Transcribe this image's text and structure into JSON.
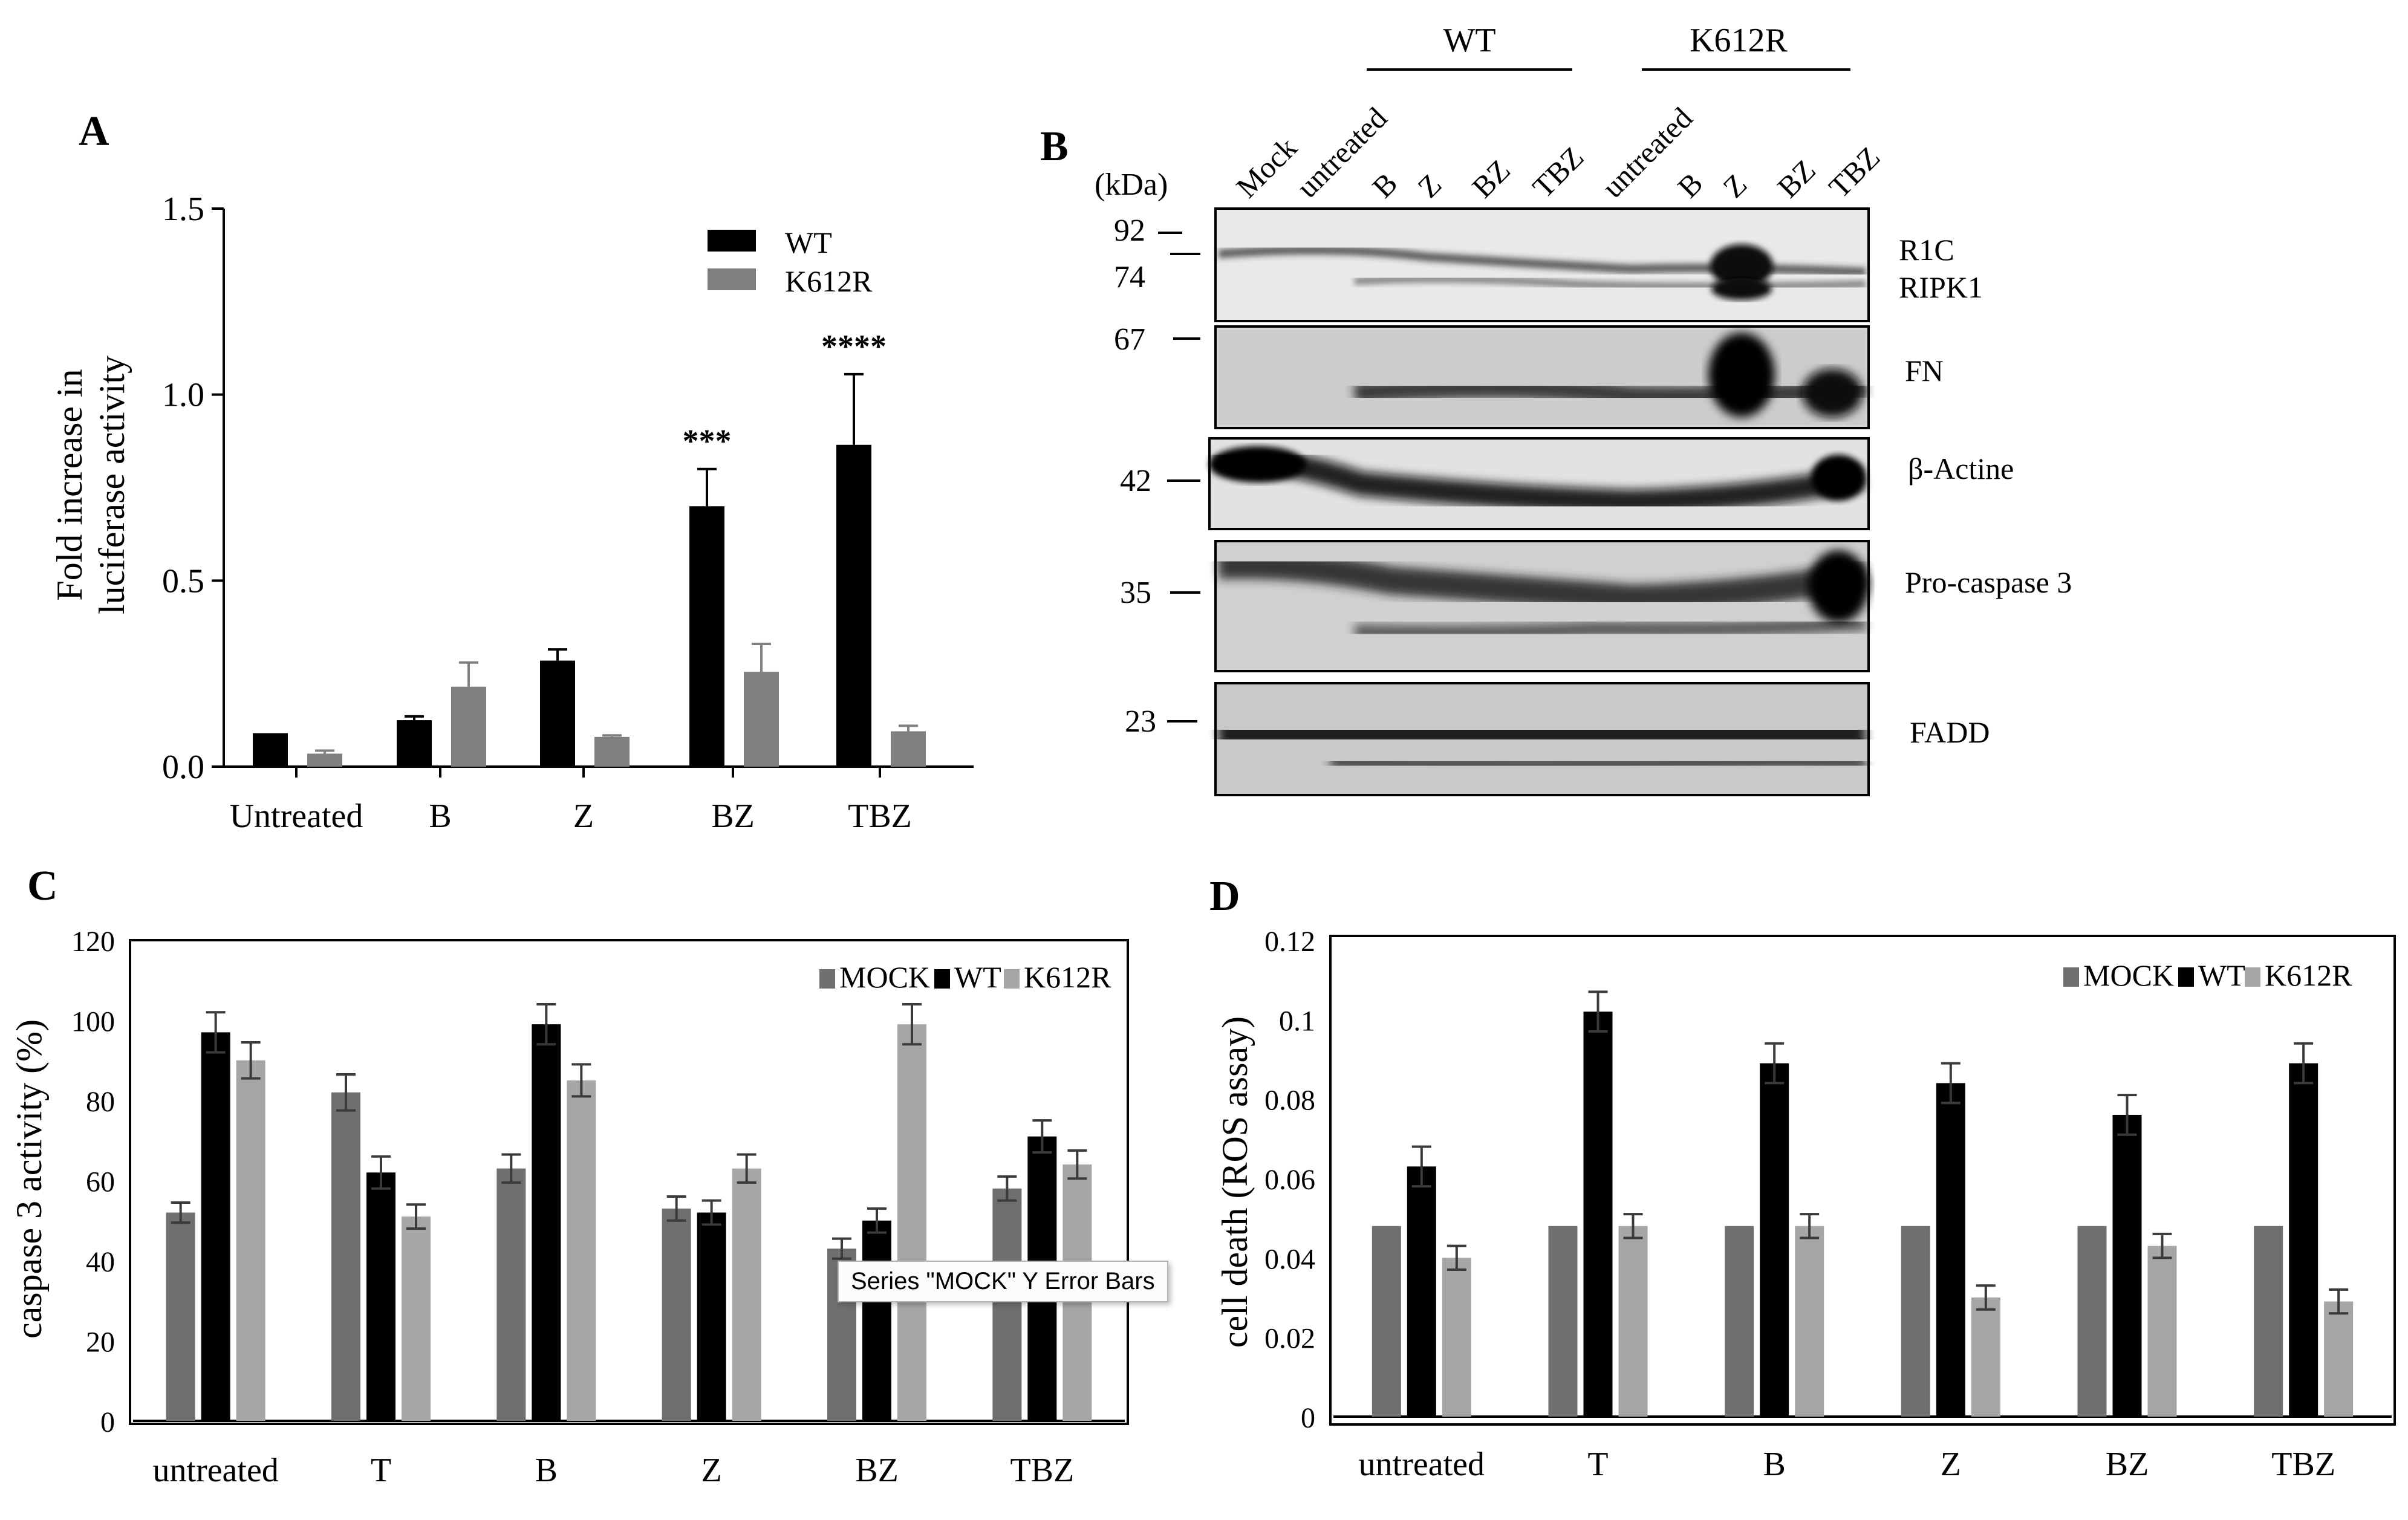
{
  "colors": {
    "wt": "#000000",
    "k612r_a": "#808080",
    "mock": "#6f6f6f",
    "k612r_light": "#a6a6a6",
    "frame": "#000000"
  },
  "chart_data": [
    {
      "panel": "A",
      "type": "bar",
      "ylabel_line1": "Fold increase in",
      "ylabel_line2": "luciferase activity",
      "ylim": [
        0,
        1.5
      ],
      "yticks": [
        "0.0",
        "0.5",
        "1.0",
        "1.5"
      ],
      "categories": [
        "Untreated",
        "B",
        "Z",
        "BZ",
        "TBZ"
      ],
      "series": [
        {
          "name": "WT",
          "values": [
            0.09,
            0.125,
            0.285,
            0.7,
            0.865
          ],
          "errors": [
            0.0,
            0.01,
            0.03,
            0.1,
            0.19
          ]
        },
        {
          "name": "K612R",
          "values": [
            0.035,
            0.215,
            0.08,
            0.255,
            0.095
          ],
          "errors": [
            0.008,
            0.065,
            0.004,
            0.075,
            0.015
          ]
        }
      ],
      "annotations": [
        {
          "category": "BZ",
          "text": "***"
        },
        {
          "category": "TBZ",
          "text": "****"
        }
      ]
    },
    {
      "panel": "C",
      "type": "bar",
      "ylabel": "caspase 3 activity (%)",
      "ylim": [
        0,
        120
      ],
      "yticks": [
        "0",
        "20",
        "40",
        "60",
        "80",
        "100",
        "120"
      ],
      "categories": [
        "untreated",
        "T",
        "B",
        "Z",
        "BZ",
        "TBZ"
      ],
      "series": [
        {
          "name": "MOCK",
          "values": [
            52,
            82,
            63,
            53,
            43,
            58
          ],
          "errors": [
            2.5,
            4.5,
            3.5,
            3,
            2.5,
            3
          ]
        },
        {
          "name": "WT",
          "values": [
            97,
            62,
            99,
            52,
            50,
            71
          ],
          "errors": [
            5,
            4,
            5,
            3,
            3,
            4
          ]
        },
        {
          "name": "K612R",
          "values": [
            90,
            51,
            85,
            63,
            99,
            64
          ],
          "errors": [
            4.5,
            3,
            4,
            3.5,
            5,
            3.5
          ]
        }
      ],
      "tooltip": "Series \"MOCK\" Y Error Bars"
    },
    {
      "panel": "D",
      "type": "bar",
      "ylabel": "cell death (ROS assay)",
      "ylim": [
        0,
        0.12
      ],
      "yticks": [
        "0",
        "0.02",
        "0.04",
        "0.06",
        "0.08",
        "0.1",
        "0.12"
      ],
      "categories": [
        "untreated",
        "T",
        "B",
        "Z",
        "BZ",
        "TBZ"
      ],
      "series": [
        {
          "name": "MOCK",
          "values": [
            0.048,
            0.048,
            0.048,
            0.048,
            0.048,
            0.048
          ],
          "errors": [
            0,
            0,
            0,
            0,
            0,
            0
          ]
        },
        {
          "name": "WT",
          "values": [
            0.063,
            0.102,
            0.089,
            0.084,
            0.076,
            0.089
          ],
          "errors": [
            0.005,
            0.005,
            0.005,
            0.005,
            0.005,
            0.005
          ]
        },
        {
          "name": "K612R",
          "values": [
            0.04,
            0.048,
            0.048,
            0.03,
            0.043,
            0.029
          ],
          "errors": [
            0.003,
            0.003,
            0.003,
            0.003,
            0.003,
            0.003
          ]
        }
      ]
    }
  ],
  "blot": {
    "panel": "B",
    "group_labels": [
      "WT",
      "K612R"
    ],
    "kda_title": "(kDa)",
    "lane_labels": [
      "Mock",
      "untreated",
      "B",
      "Z",
      "BZ",
      "TBZ",
      "untreated",
      "B",
      "Z",
      "BZ",
      "TBZ"
    ],
    "markers": [
      "92",
      "74",
      "67",
      "42",
      "35",
      "23"
    ],
    "band_labels": [
      "R1C",
      "RIPK1",
      "FN",
      "β-Actine",
      "Pro-caspase 3",
      "FADD"
    ]
  }
}
